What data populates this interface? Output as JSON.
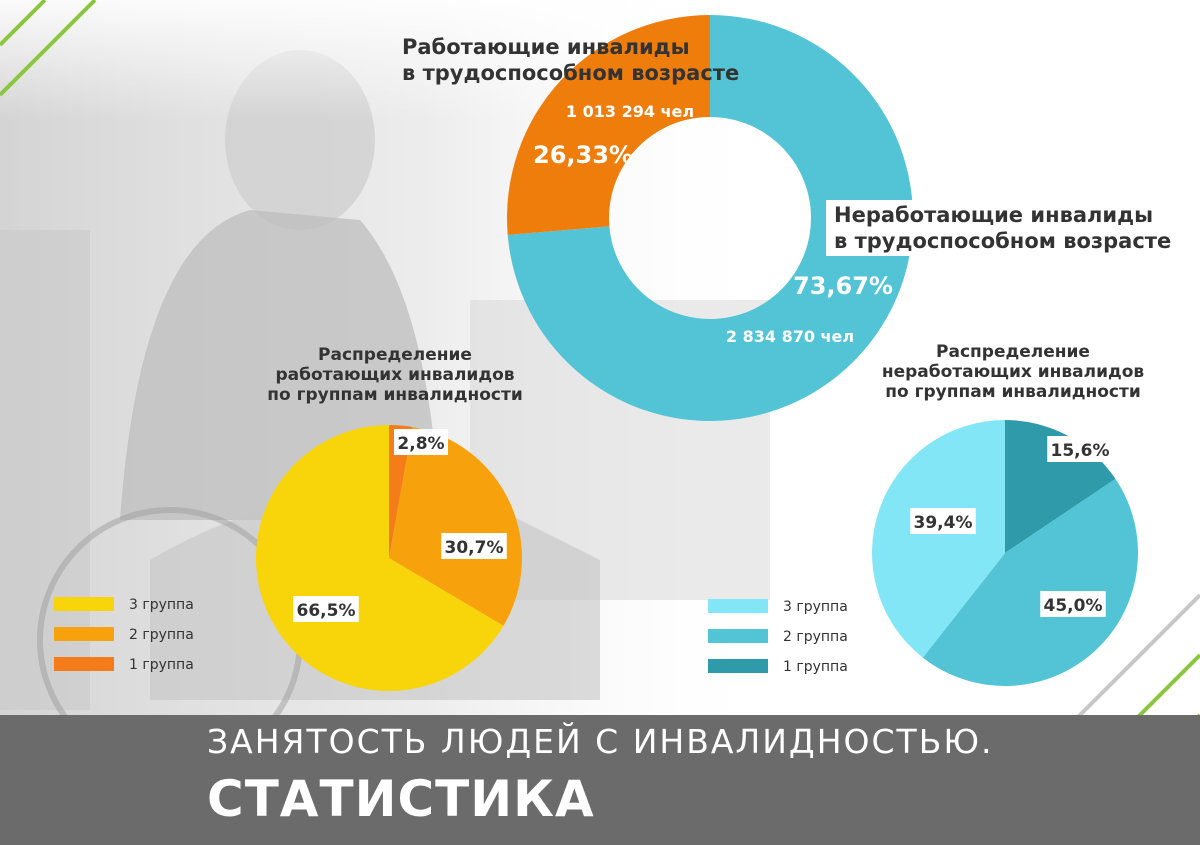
{
  "colors": {
    "working": "#ee7d0b",
    "nonworking": "#52c4d6",
    "w_group3": "#f8d40a",
    "w_group2": "#f7a20c",
    "w_group1": "#f47d1a",
    "n_group3": "#82e6f6",
    "n_group2": "#52c4d6",
    "n_group1": "#2f9aaa",
    "footer": "#6b6b6b",
    "green": "#8cc63e"
  },
  "donut": {
    "working": {
      "title_line1": "Работающие инвалиды",
      "title_line2": "в трудоспособном возрасте",
      "count": "1 013 294 чел",
      "percent": "26,33%"
    },
    "nonworking": {
      "title_line1": "Неработающие инвалиды",
      "title_line2": "в трудоспособном возрасте",
      "count": "2 834 870 чел",
      "percent": "73,67%"
    }
  },
  "working_pie": {
    "title_line1": "Распределение",
    "title_line2": "работающих инвалидов",
    "title_line3": "по группам инвалидности",
    "legend": [
      "3 группа",
      "2 группа",
      "1 группа"
    ]
  },
  "nonworking_pie": {
    "title_line1": "Распределение",
    "title_line2": "неработающих инвалидов",
    "title_line3": "по группам инвалидности",
    "legend": [
      "3 группа",
      "2 группа",
      "1 группа"
    ]
  },
  "footer": {
    "line1": "ЗАНЯТОСТЬ ЛЮДЕЙ С ИНВАЛИДНОСТЬЮ.",
    "line2": "СТАТИСТИКА"
  },
  "chart_data": [
    {
      "type": "pie",
      "categories": [
        "Работающие инвалиды в трудоспособном возрасте",
        "Неработающие инвалиды в трудоспособном возрасте"
      ],
      "values": [
        26.33,
        73.67
      ],
      "counts": [
        1013294,
        2834870
      ]
    },
    {
      "type": "pie",
      "title": "Распределение работающих инвалидов по группам инвалидности",
      "categories": [
        "1 группа",
        "2 группа",
        "3 группа"
      ],
      "values": [
        2.8,
        30.7,
        66.5
      ],
      "labels": [
        "2,8%",
        "30,7%",
        "66,5%"
      ]
    },
    {
      "type": "pie",
      "title": "Распределение неработающих инвалидов по группам инвалидности",
      "categories": [
        "1 группа",
        "2 группа",
        "3 группа"
      ],
      "values": [
        15.6,
        45.0,
        39.4
      ],
      "labels": [
        "15,6%",
        "45,0%",
        "39,4%"
      ]
    }
  ]
}
